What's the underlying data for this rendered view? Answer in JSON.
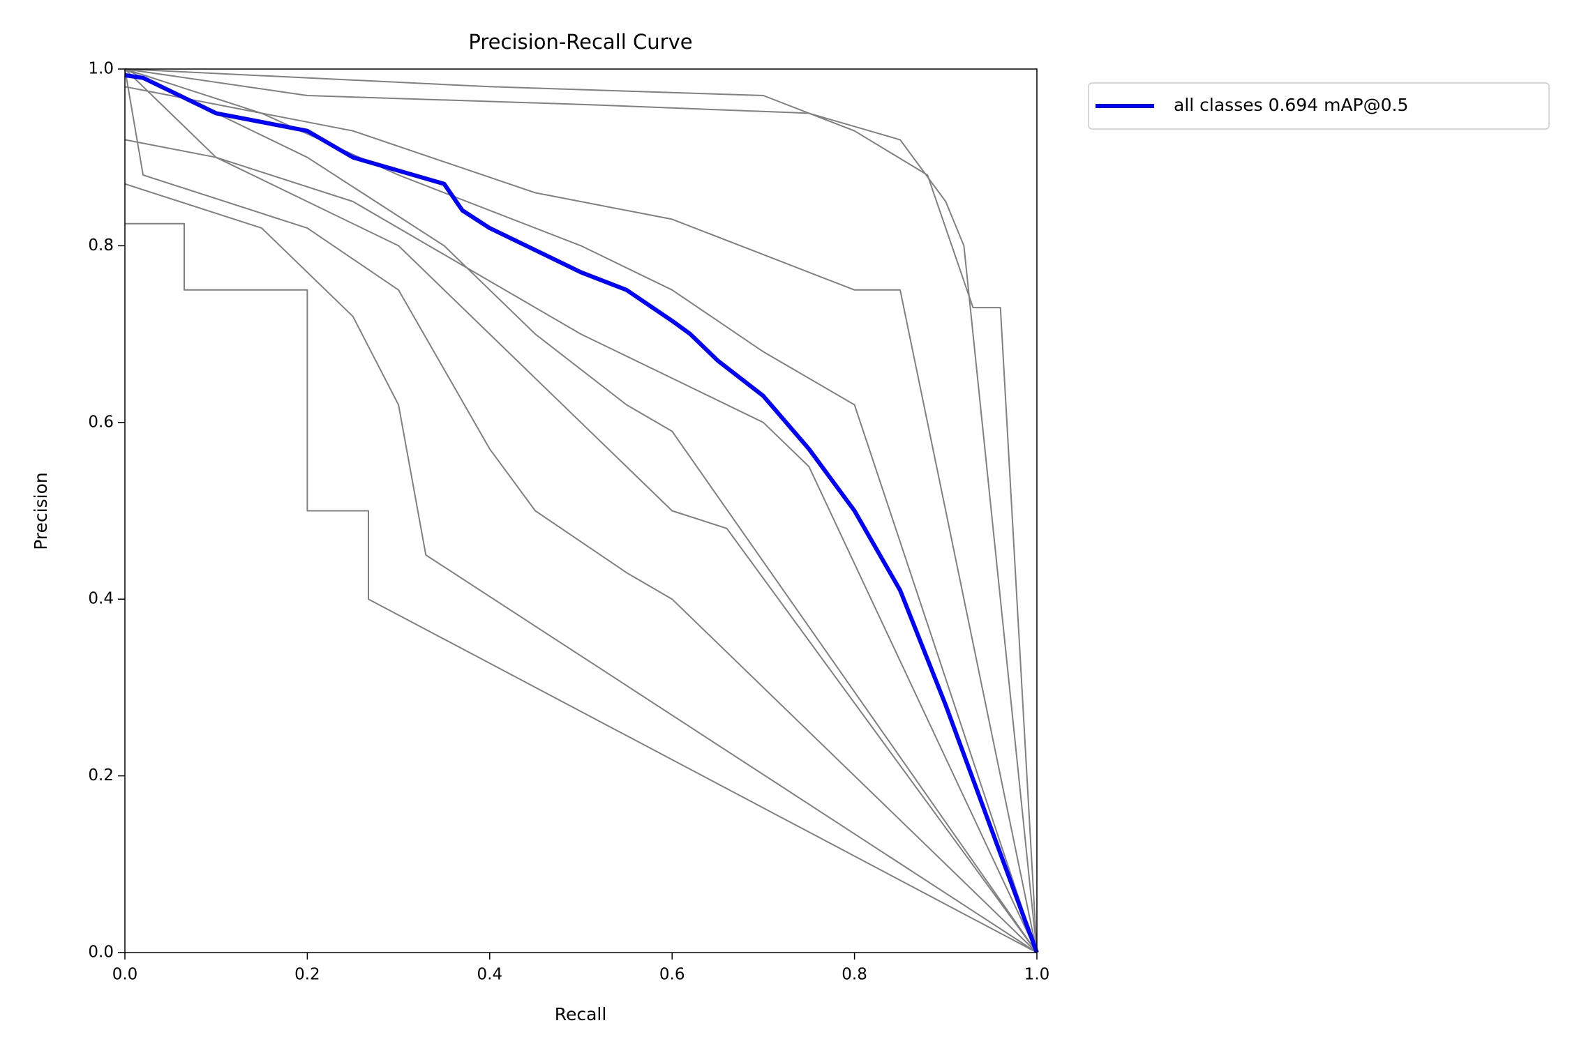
{
  "chart_data": {
    "type": "line",
    "title": "Precision-Recall Curve",
    "x_label": "Recall",
    "y_label": "Precision",
    "xlim": [
      0,
      1
    ],
    "ylim": [
      0,
      1
    ],
    "xticks": [
      {
        "value": 0,
        "label": "0.0"
      },
      0.2,
      0.4,
      0.6,
      0.8,
      {
        "value": 1,
        "label": "1.0"
      }
    ],
    "yticks": [
      {
        "value": 0,
        "label": "0.0"
      },
      0.2,
      0.4,
      0.6,
      0.8,
      {
        "value": 1,
        "label": "1.0"
      }
    ],
    "legend": "outside upper right",
    "series": [
      {
        "name": "all classes 0.694 mAP@0.5",
        "color": "#0000ff",
        "x": [
          0,
          0.02,
          0.05,
          0.08,
          0.1,
          0.15,
          0.2,
          0.25,
          0.3,
          0.35,
          0.37,
          0.4,
          0.45,
          0.5,
          0.55,
          0.6,
          0.62,
          0.65,
          0.7,
          0.75,
          0.8,
          0.85,
          0.9,
          0.95,
          1
        ],
        "values": [
          0.993,
          0.99,
          0.975,
          0.96,
          0.95,
          0.94,
          0.93,
          0.9,
          0.885,
          0.87,
          0.84,
          0.82,
          0.795,
          0.77,
          0.75,
          0.715,
          0.7,
          0.67,
          0.63,
          0.57,
          0.5,
          0.41,
          0.28,
          0.14,
          0
        ]
      },
      {
        "color": "#808080",
        "x": [
          0,
          0.065,
          0.065,
          0.2,
          0.2,
          0.267,
          0.267,
          1
        ],
        "values": [
          0.825,
          0.825,
          0.75,
          0.75,
          0.5,
          0.5,
          0.4,
          0
        ]
      },
      {
        "color": "#808080",
        "x": [
          0,
          0.02,
          0.2,
          0.3,
          0.35,
          0.4,
          0.45,
          0.55,
          0.6,
          1
        ],
        "values": [
          1,
          0.88,
          0.82,
          0.75,
          0.66,
          0.57,
          0.5,
          0.43,
          0.4,
          0
        ]
      },
      {
        "color": "#808080",
        "x": [
          0,
          0.1,
          0.3,
          0.4,
          0.5,
          0.6,
          0.66,
          1
        ],
        "values": [
          1,
          0.9,
          0.8,
          0.7,
          0.6,
          0.5,
          0.48,
          0
        ]
      },
      {
        "color": "#808080",
        "x": [
          0,
          0.15,
          0.3,
          0.5,
          0.6,
          0.7,
          0.8,
          1
        ],
        "values": [
          1,
          0.95,
          0.88,
          0.8,
          0.75,
          0.68,
          0.62,
          0
        ]
      },
      {
        "color": "#808080",
        "x": [
          0,
          0.2,
          0.5,
          0.75,
          0.85,
          0.9,
          0.92,
          1
        ],
        "values": [
          1,
          0.97,
          0.96,
          0.95,
          0.92,
          0.85,
          0.8,
          0
        ]
      },
      {
        "color": "#808080",
        "x": [
          0,
          0.4,
          0.7,
          0.8,
          0.88,
          0.93,
          0.96,
          1
        ],
        "values": [
          1,
          0.98,
          0.97,
          0.93,
          0.88,
          0.73,
          0.73,
          0
        ]
      },
      {
        "color": "#808080",
        "x": [
          0,
          0.1,
          0.25,
          0.4,
          0.5,
          0.6,
          0.7,
          0.75,
          1
        ],
        "values": [
          0.92,
          0.9,
          0.85,
          0.76,
          0.7,
          0.65,
          0.6,
          0.55,
          0
        ]
      },
      {
        "color": "#808080",
        "x": [
          0,
          0.2,
          0.35,
          0.45,
          0.55,
          0.6,
          1
        ],
        "values": [
          1,
          0.9,
          0.8,
          0.7,
          0.62,
          0.59,
          0
        ]
      },
      {
        "color": "#808080",
        "x": [
          0,
          0.25,
          0.45,
          0.6,
          0.7,
          0.8,
          0.85,
          1
        ],
        "values": [
          0.98,
          0.93,
          0.86,
          0.83,
          0.79,
          0.75,
          0.75,
          0
        ]
      },
      {
        "color": "#808080",
        "x": [
          0,
          0.15,
          0.25,
          0.3,
          0.33,
          1
        ],
        "values": [
          0.87,
          0.82,
          0.72,
          0.62,
          0.45,
          0
        ]
      }
    ]
  }
}
